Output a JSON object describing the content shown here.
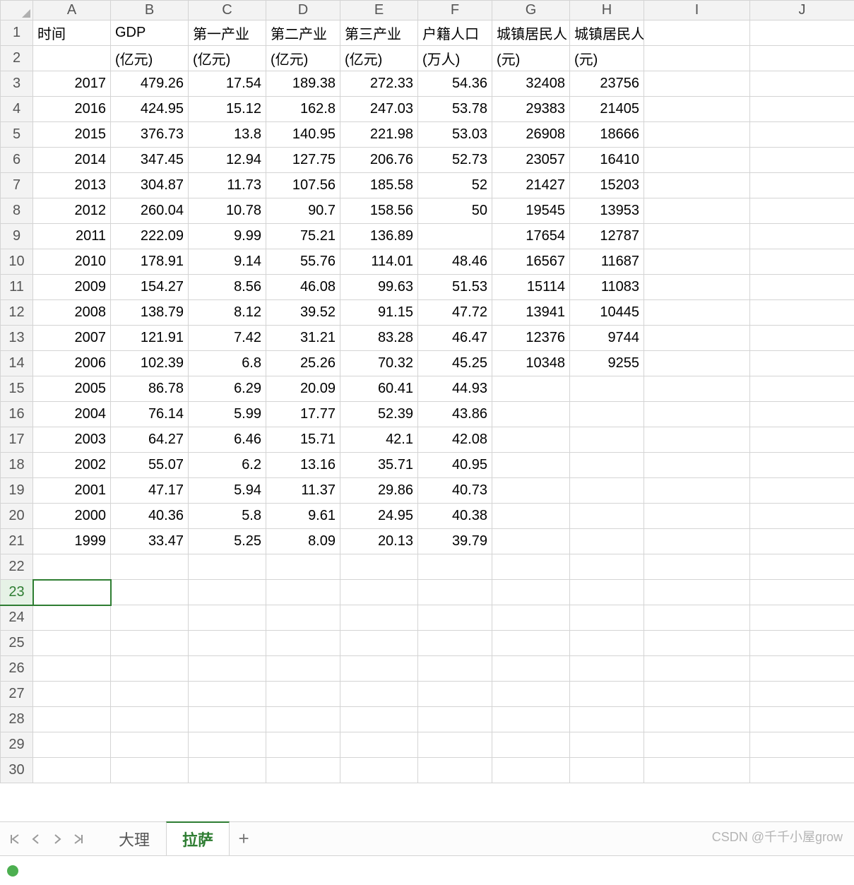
{
  "columns": [
    "A",
    "B",
    "C",
    "D",
    "E",
    "F",
    "G",
    "H",
    "I",
    "J"
  ],
  "header_row1": [
    "时间",
    "GDP",
    "第一产业",
    "第二产业",
    "第三产业",
    "户籍人口",
    "城镇居民人",
    "城镇居民人均消费支出",
    "",
    ""
  ],
  "header_row2": [
    "",
    "(亿元)",
    "(亿元)",
    "(亿元)",
    "(亿元)",
    "(万人)",
    "(元)",
    "(元)",
    "",
    ""
  ],
  "data_rows": [
    [
      "2017",
      "479.26",
      "17.54",
      "189.38",
      "272.33",
      "54.36",
      "32408",
      "23756",
      "",
      ""
    ],
    [
      "2016",
      "424.95",
      "15.12",
      "162.8",
      "247.03",
      "53.78",
      "29383",
      "21405",
      "",
      ""
    ],
    [
      "2015",
      "376.73",
      "13.8",
      "140.95",
      "221.98",
      "53.03",
      "26908",
      "18666",
      "",
      ""
    ],
    [
      "2014",
      "347.45",
      "12.94",
      "127.75",
      "206.76",
      "52.73",
      "23057",
      "16410",
      "",
      ""
    ],
    [
      "2013",
      "304.87",
      "11.73",
      "107.56",
      "185.58",
      "52",
      "21427",
      "15203",
      "",
      ""
    ],
    [
      "2012",
      "260.04",
      "10.78",
      "90.7",
      "158.56",
      "50",
      "19545",
      "13953",
      "",
      ""
    ],
    [
      "2011",
      "222.09",
      "9.99",
      "75.21",
      "136.89",
      "",
      "17654",
      "12787",
      "",
      ""
    ],
    [
      "2010",
      "178.91",
      "9.14",
      "55.76",
      "114.01",
      "48.46",
      "16567",
      "11687",
      "",
      ""
    ],
    [
      "2009",
      "154.27",
      "8.56",
      "46.08",
      "99.63",
      "51.53",
      "15114",
      "11083",
      "",
      ""
    ],
    [
      "2008",
      "138.79",
      "8.12",
      "39.52",
      "91.15",
      "47.72",
      "13941",
      "10445",
      "",
      ""
    ],
    [
      "2007",
      "121.91",
      "7.42",
      "31.21",
      "83.28",
      "46.47",
      "12376",
      "9744",
      "",
      ""
    ],
    [
      "2006",
      "102.39",
      "6.8",
      "25.26",
      "70.32",
      "45.25",
      "10348",
      "9255",
      "",
      ""
    ],
    [
      "2005",
      "86.78",
      "6.29",
      "20.09",
      "60.41",
      "44.93",
      "",
      "",
      "",
      ""
    ],
    [
      "2004",
      "76.14",
      "5.99",
      "17.77",
      "52.39",
      "43.86",
      "",
      "",
      "",
      ""
    ],
    [
      "2003",
      "64.27",
      "6.46",
      "15.71",
      "42.1",
      "42.08",
      "",
      "",
      "",
      ""
    ],
    [
      "2002",
      "55.07",
      "6.2",
      "13.16",
      "35.71",
      "40.95",
      "",
      "",
      "",
      ""
    ],
    [
      "2001",
      "47.17",
      "5.94",
      "11.37",
      "29.86",
      "40.73",
      "",
      "",
      "",
      ""
    ],
    [
      "2000",
      "40.36",
      "5.8",
      "9.61",
      "24.95",
      "40.38",
      "",
      "",
      "",
      ""
    ],
    [
      "1999",
      "33.47",
      "5.25",
      "8.09",
      "20.13",
      "39.79",
      "",
      "",
      "",
      ""
    ]
  ],
  "total_rows": 30,
  "selected_row": 23,
  "tabs": {
    "items": [
      "大理",
      "拉萨"
    ],
    "active": 1,
    "add_label": "+"
  },
  "watermark": "CSDN @千千小屋grow",
  "status_text": "",
  "colors": {
    "grid_border": "#d4d4d4",
    "header_bg": "#f3f3f3",
    "select_green": "#2e7d32",
    "tab_active_text": "#2e7d32"
  }
}
